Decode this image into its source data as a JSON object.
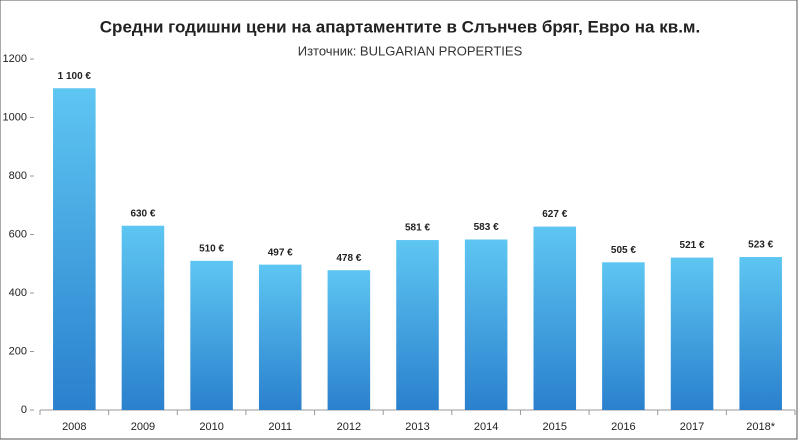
{
  "chart_data": {
    "type": "bar",
    "title": "Средни годишни цени на апартаментите в Слънчев бряг, Евро на кв.м.",
    "subtitle": "Източник: BULGARIAN PROPERTIES",
    "categories": [
      "2008",
      "2009",
      "2010",
      "2011",
      "2012",
      "2013",
      "2014",
      "2015",
      "2016",
      "2017",
      "2018*"
    ],
    "values": [
      1100,
      630,
      510,
      497,
      478,
      581,
      583,
      627,
      505,
      521,
      523
    ],
    "value_labels": [
      "1 100 €",
      "630 €",
      "510 €",
      "497 €",
      "478 €",
      "581 €",
      "583 €",
      "627 €",
      "505 €",
      "521 €",
      "523 €"
    ],
    "gradient": [
      "#5ec6f2",
      "#2a80cd"
    ],
    "ylim": [
      0,
      1200
    ],
    "yticks": [
      0,
      200,
      400,
      600,
      800,
      1000,
      1200
    ],
    "grid": false
  }
}
